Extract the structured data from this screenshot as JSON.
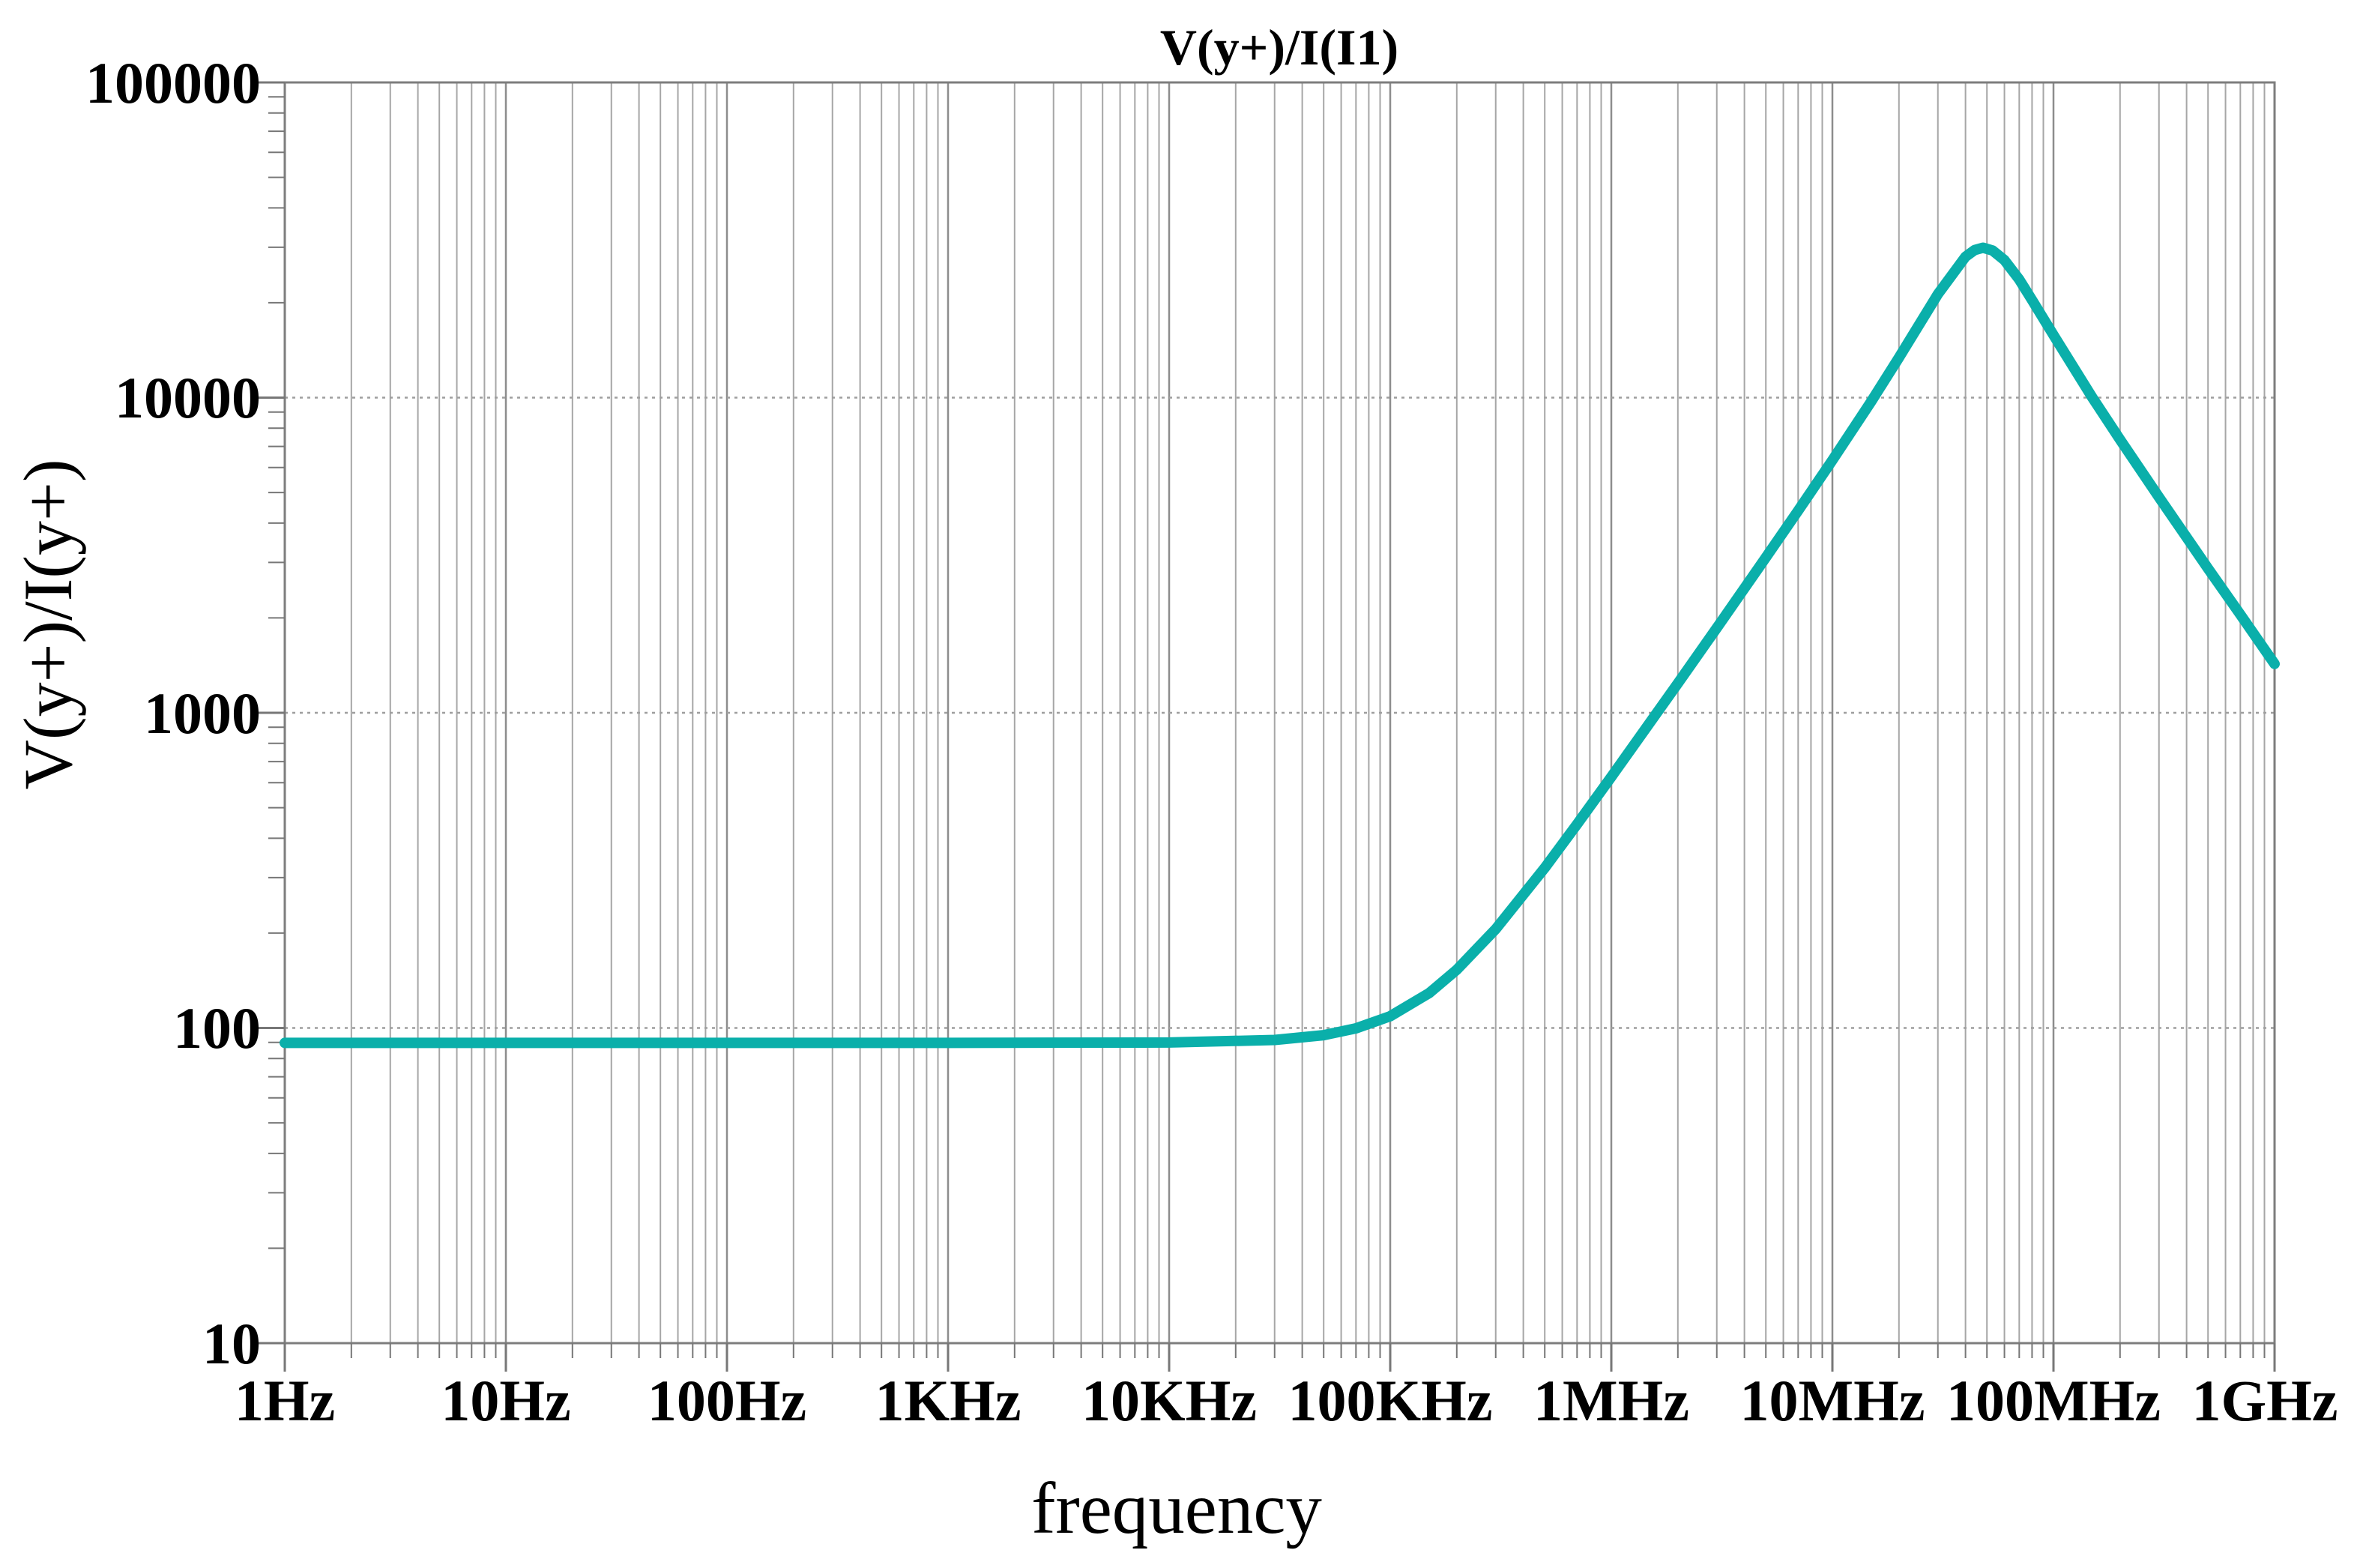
{
  "chart_data": {
    "type": "line",
    "title": "V(y+)/I(I1)",
    "xlabel": "frequency",
    "ylabel": "V(y+)/I(y+)",
    "grid": true,
    "legend_position": "none",
    "x_axis": {
      "scale": "log",
      "min": 1,
      "max": 1000000000,
      "tick_values": [
        1,
        10,
        100,
        1000,
        10000,
        100000,
        1000000,
        10000000,
        100000000,
        1000000000
      ],
      "tick_labels": [
        "1Hz",
        "10Hz",
        "100Hz",
        "1KHz",
        "10KHz",
        "100KHz",
        "1MHz",
        "10MHz",
        "100MHz",
        "1GHz"
      ]
    },
    "y_axis": {
      "scale": "log",
      "min": 10,
      "max": 100000,
      "tick_values": [
        100000,
        10000,
        1000,
        100,
        10
      ],
      "tick_labels": [
        "100000",
        "10000",
        "1000",
        "100",
        "10"
      ]
    },
    "series": [
      {
        "name": "V(y+)/I(I1)",
        "peak": {
          "frequency_hz": 48000000,
          "value": 29900
        },
        "flat_low_frequency_value": 90,
        "value_at_1GHz": 1430,
        "points": [
          [
            1,
            89.7
          ],
          [
            10,
            89.7
          ],
          [
            100,
            89.7
          ],
          [
            1000,
            89.7
          ],
          [
            10000,
            89.9
          ],
          [
            30000,
            91.6
          ],
          [
            50000,
            94.9
          ],
          [
            70000,
            99.7
          ],
          [
            100000,
            109
          ],
          [
            150000,
            129
          ],
          [
            200000,
            153
          ],
          [
            300000,
            206
          ],
          [
            500000,
            322
          ],
          [
            700000,
            443
          ],
          [
            1000000,
            626
          ],
          [
            2000000,
            1240
          ],
          [
            3000000,
            1860
          ],
          [
            5000000,
            3110
          ],
          [
            7000000,
            4380
          ],
          [
            10000000,
            6330
          ],
          [
            15000000,
            9730
          ],
          [
            20000000,
            13400
          ],
          [
            30000000,
            21300
          ],
          [
            40000000,
            28000
          ],
          [
            44000000,
            29400
          ],
          [
            48000000,
            29900
          ],
          [
            53000000,
            29300
          ],
          [
            60000000,
            27300
          ],
          [
            70000000,
            23700
          ],
          [
            80000000,
            20400
          ],
          [
            100000000,
            15800
          ],
          [
            150000000,
            10000
          ],
          [
            200000000,
            7360
          ],
          [
            300000000,
            4830
          ],
          [
            500000000,
            2870
          ],
          [
            700000000,
            2050
          ],
          [
            1000000000,
            1430
          ]
        ]
      }
    ]
  },
  "colors": {
    "trace": "#0aafaa",
    "title": "#0aafaa",
    "grid_minor": "#a6a6a6",
    "grid_major": "#8d8d8d",
    "grid_horizontal": "#9e9e9e",
    "border": "#7d7d7d",
    "tick": "#777777",
    "text": "#000000",
    "background": "#ffffff"
  }
}
